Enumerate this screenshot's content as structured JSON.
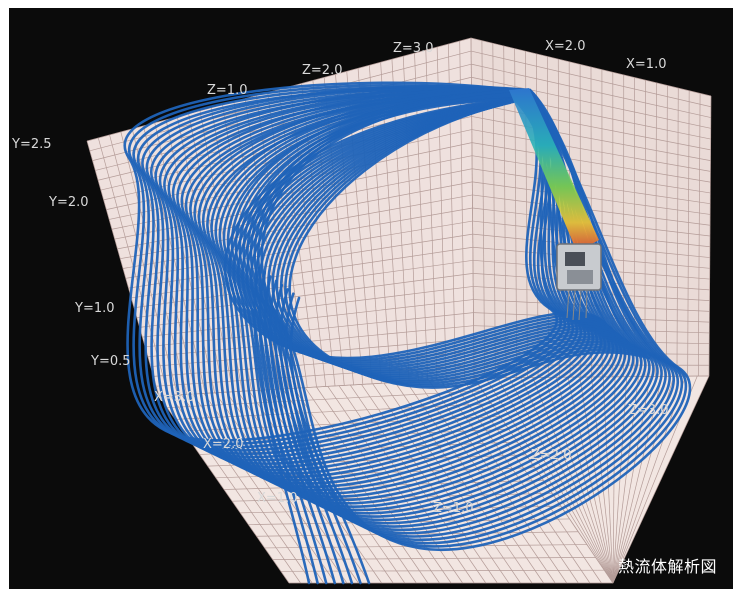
{
  "figure": {
    "caption": "熱流体解析図",
    "labels": {
      "top_z": [
        "Z=1.0",
        "Z=2.0",
        "Z=3.0"
      ],
      "top_x": [
        "X=2.0",
        "X=1.0"
      ],
      "left_y": [
        "Y=2.5",
        "Y=2.0",
        "Y=1.0",
        "Y=0.5"
      ],
      "floor_x": [
        "X=3.0",
        "X=2.0",
        "X=1.0"
      ],
      "floor_z": [
        "Z=1.0",
        "Z=2.0",
        "Z=3.0"
      ]
    },
    "colors": {
      "background": "#0b0b0b",
      "wall": "#efe1de",
      "grid": "#b49c98",
      "streamline": "#1f63b8"
    }
  }
}
